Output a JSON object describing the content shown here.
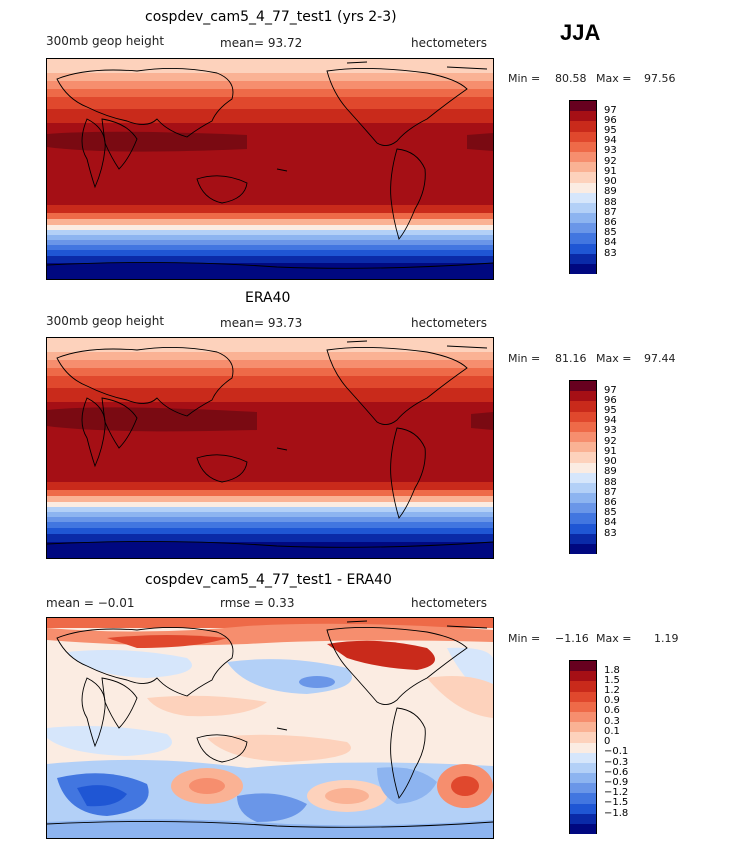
{
  "season": "JJA",
  "panels": [
    {
      "id": "model",
      "title": "cospdev_cam5_4_77_test1 (yrs 2-3)",
      "left_label": "300mb geop height",
      "center_label": "mean=  93.72",
      "right_label": "hectometers",
      "min_label": "Min =",
      "min_value": "80.58",
      "max_label": "Max =",
      "max_value": "97.56",
      "colorbar_labels": [
        "97",
        "96",
        "95",
        "94",
        "93",
        "92",
        "91",
        "90",
        "89",
        "88",
        "87",
        "86",
        "85",
        "84",
        "83"
      ]
    },
    {
      "id": "obs",
      "title": "ERA40",
      "left_label": "300mb geop height",
      "center_label": "mean=  93.73",
      "right_label": "hectometers",
      "min_label": "Min =",
      "min_value": "81.16",
      "max_label": "Max =",
      "max_value": "97.44",
      "colorbar_labels": [
        "97",
        "96",
        "95",
        "94",
        "93",
        "92",
        "91",
        "90",
        "89",
        "88",
        "87",
        "86",
        "85",
        "84",
        "83"
      ]
    },
    {
      "id": "diff",
      "title": "cospdev_cam5_4_77_test1 - ERA40",
      "left_label": "mean =  −0.01",
      "center_label": "rmse =   0.33",
      "right_label": "hectometers",
      "min_label": "Min =",
      "min_value": "−1.16",
      "max_label": "Max =",
      "max_value": "1.19",
      "colorbar_labels": [
        "1.8",
        "1.5",
        "1.2",
        "0.9",
        "0.6",
        "0.3",
        "0.1",
        "0",
        "−0.1",
        "−0.3",
        "−0.6",
        "−0.9",
        "−1.2",
        "−1.5",
        "−1.8"
      ]
    }
  ],
  "colors": {
    "scale": [
      "#67001f",
      "#a50f15",
      "#c92a1b",
      "#e0482d",
      "#ee6a48",
      "#f68e6e",
      "#fab294",
      "#fdd2bc",
      "#fbece2",
      "#d6e6fb",
      "#b3d0f7",
      "#8db4f0",
      "#6a96e8",
      "#4276e0",
      "#1f56d4",
      "#0a2aa8",
      "#000880"
    ]
  }
}
